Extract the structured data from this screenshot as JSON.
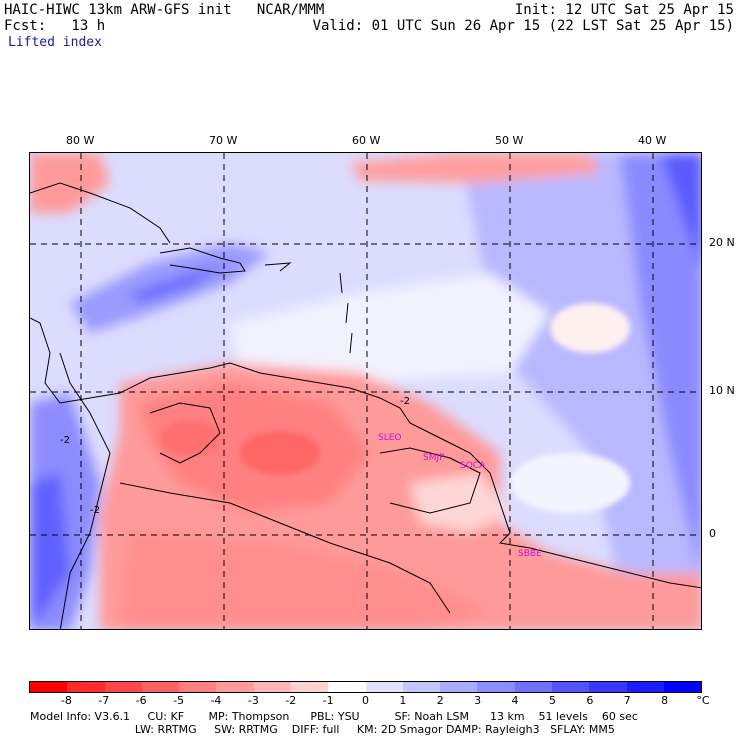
{
  "header": {
    "title_left": "HAIC-HIWC 13km ARW-GFS init   NCAR/MMM",
    "fcst_left": "Fcst:   13 h",
    "field_name": "Lifted index",
    "init": "Init: 12 UTC Sat 25 Apr 15",
    "valid": "Valid: 01 UTC Sun 26 Apr 15 (22 LST Sat 25 Apr 15)"
  },
  "axes": {
    "lon_labels": [
      "80 W",
      "70 W",
      "60 W",
      "50 W",
      "40 W"
    ],
    "lat_labels": [
      "20 N",
      "10 N",
      "0"
    ]
  },
  "stations": [
    "SLEO",
    "SMJP",
    "SOCA",
    "SBBE"
  ],
  "contour_label": "-2",
  "colorbar": {
    "labels": [
      "-8",
      "-7",
      "-6",
      "-5",
      "-4",
      "-3",
      "-2",
      "-1",
      "0",
      "1",
      "2",
      "3",
      "4",
      "5",
      "6",
      "7",
      "8"
    ],
    "unit": "°C",
    "colors": [
      "#ff0000",
      "#ff2a2a",
      "#ff4747",
      "#ff6464",
      "#ff8080",
      "#ff9b9b",
      "#ffb6b6",
      "#ffd3d3",
      "#ffffff",
      "#e2e2ff",
      "#c6c6ff",
      "#aaaaff",
      "#8d8dff",
      "#7070ff",
      "#5454ff",
      "#3838ff",
      "#1c1cff",
      "#0000ff"
    ]
  },
  "model_info": {
    "line1": "Model Info: V3.6.1     CU: KF       MP: Thompson      PBL: YSU          SF: Noah LSM      13 km    51 levels    60 sec",
    "line2": "                              LW: RRTMG     SW: RRTMG    DIFF: full     KM: 2D Smagor DAMP: Rayleigh3   SFLAY: MM5"
  }
}
